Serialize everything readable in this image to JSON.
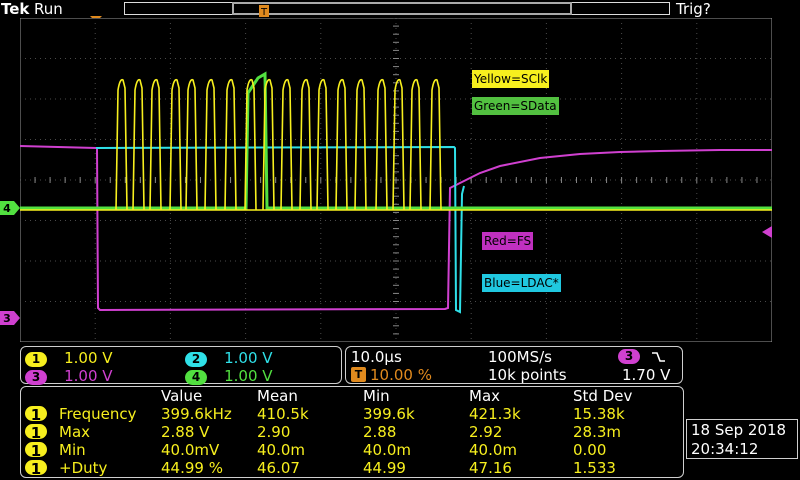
{
  "topbar": {
    "brand": "Tek",
    "state": "Run",
    "trigger_status": "Trig?"
  },
  "markers": {
    "trigger_pos_glyph": "T",
    "ch4_ground": "4",
    "ch3_ground": "3"
  },
  "labels": {
    "yellow": "Yellow=SClk",
    "green": "Green=SData",
    "red": "Red=FS",
    "blue": "Blue=LDAC*"
  },
  "colors": {
    "ch1": "#f7ef1e",
    "ch2": "#2fe0e8",
    "ch3": "#d040d0",
    "ch4": "#52e040"
  },
  "channels": [
    {
      "num": "1",
      "scale": "1.00 V"
    },
    {
      "num": "2",
      "scale": "1.00 V"
    },
    {
      "num": "3",
      "scale": "1.00 V"
    },
    {
      "num": "4",
      "scale": "1.00 V"
    }
  ],
  "horizontal": {
    "time_div": "10.0µs",
    "sample_rate": "100MS/s",
    "trigger_position": "10.00 %",
    "record_length": "10k points",
    "trigger_source": "3",
    "trigger_slope_icon": "falling-edge-icon",
    "trigger_level": "1.70 V"
  },
  "measurements": {
    "headers": [
      "Value",
      "Mean",
      "Min",
      "Max",
      "Std Dev"
    ],
    "rows": [
      {
        "ch": "1",
        "name": "Frequency",
        "value": "399.6kHz",
        "mean": "410.5k",
        "min": "399.6k",
        "max": "421.3k",
        "std": "15.38k"
      },
      {
        "ch": "1",
        "name": "Max",
        "value": "2.88 V",
        "mean": "2.90",
        "min": "2.88",
        "max": "2.92",
        "std": "28.3m"
      },
      {
        "ch": "1",
        "name": "Min",
        "value": "40.0mV",
        "mean": "40.0m",
        "min": "40.0m",
        "max": "40.0m",
        "std": "0.00"
      },
      {
        "ch": "1",
        "name": "+Duty",
        "value": "44.99 %",
        "mean": "46.07",
        "min": "44.99",
        "max": "47.16",
        "std": "1.533"
      }
    ]
  },
  "datetime": {
    "date": "18 Sep  2018",
    "time": "20:34:12"
  }
}
